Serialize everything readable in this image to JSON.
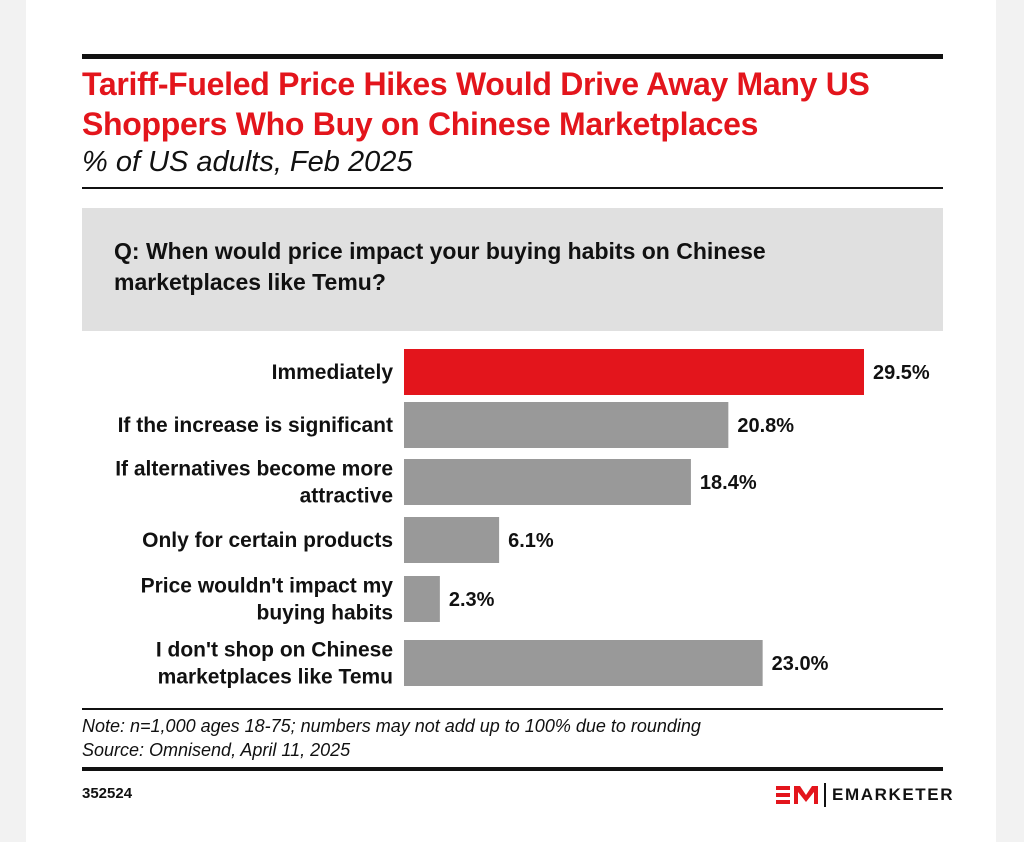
{
  "header": {
    "title": "Tariff-Fueled Price Hikes Would Drive Away Many US Shoppers Who Buy on Chinese Marketplaces",
    "subtitle": "% of US adults, Feb 2025"
  },
  "question": "Q: When would price impact your buying habits on Chinese marketplaces like Temu?",
  "footer": {
    "note": "Note: n=1,000 ages 18-75; numbers may not add up to 100% due to rounding",
    "source": "Source: Omnisend, April 11, 2025",
    "chart_id": "352524",
    "brand": "EMARKETER"
  },
  "colors": {
    "highlight": "#e3151c",
    "bar": "#999999",
    "title": "#e3151c"
  },
  "chart_data": {
    "type": "bar",
    "orientation": "horizontal",
    "categories": [
      [
        "Immediately"
      ],
      [
        "If the increase is significant"
      ],
      [
        "If alternatives become more",
        "attractive"
      ],
      [
        "Only for certain products"
      ],
      [
        "Price wouldn't impact my",
        "buying habits"
      ],
      [
        "I don't shop on Chinese",
        "marketplaces like Temu"
      ]
    ],
    "values": [
      29.5,
      20.8,
      18.4,
      6.1,
      2.3,
      23.0
    ],
    "value_labels": [
      "29.5%",
      "20.8%",
      "18.4%",
      "6.1%",
      "2.3%",
      "23.0%"
    ],
    "highlight_index": 0,
    "xlim": [
      0,
      29.5
    ],
    "grid": false,
    "legend": "none"
  }
}
